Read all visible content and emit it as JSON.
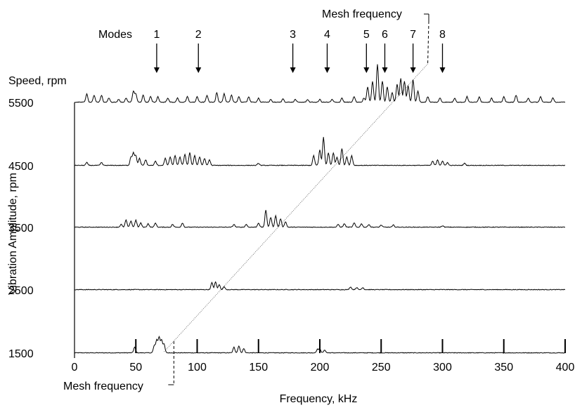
{
  "chart_data": {
    "type": "line",
    "title": "",
    "xlabel": "Frequency, kHz",
    "ylabel": "Vibration Amplitude, rpm",
    "speed_label": "Speed, rpm",
    "modes_label": "Modes",
    "mesh_label_top": "Mesh frequency",
    "mesh_label_bottom": "Mesh frequency",
    "xlim": [
      0,
      400
    ],
    "x_ticks": [
      "0",
      "50",
      "100",
      "150",
      "200",
      "250",
      "300",
      "350",
      "400"
    ],
    "x_tick_values": [
      0,
      50,
      100,
      150,
      200,
      250,
      300,
      350,
      400
    ],
    "y_ticks": [
      "1500",
      "2500",
      "3500",
      "4500",
      "5500"
    ],
    "y_tick_values": [
      1500,
      2500,
      3500,
      4500,
      5500
    ],
    "modes": [
      {
        "label": "1",
        "x": 67
      },
      {
        "label": "2",
        "x": 101
      },
      {
        "label": "3",
        "x": 178
      },
      {
        "label": "4",
        "x": 206
      },
      {
        "label": "5",
        "x": 238
      },
      {
        "label": "6",
        "x": 253
      },
      {
        "label": "7",
        "x": 276
      },
      {
        "label": "8",
        "x": 300
      }
    ],
    "mesh_line": {
      "x_start": 73,
      "x_end": 288
    },
    "series": [
      {
        "speed": 1500,
        "peaks": [
          [
            49,
            8
          ],
          [
            65,
            10
          ],
          [
            67,
            18
          ],
          [
            69,
            22
          ],
          [
            71,
            18
          ],
          [
            73,
            12
          ],
          [
            130,
            8
          ],
          [
            134,
            10
          ],
          [
            138,
            6
          ],
          [
            198,
            5
          ],
          [
            200,
            6
          ],
          [
            204,
            4
          ]
        ],
        "markers": [
          50,
          100,
          150,
          200,
          250,
          300,
          350,
          400
        ]
      },
      {
        "speed": 2500,
        "peaks": [
          [
            112,
            10
          ],
          [
            115,
            11
          ],
          [
            118,
            7
          ],
          [
            122,
            4
          ],
          [
            225,
            4
          ],
          [
            230,
            3
          ],
          [
            235,
            3
          ]
        ]
      },
      {
        "speed": 3500,
        "peaks": [
          [
            38,
            4
          ],
          [
            42,
            10
          ],
          [
            46,
            9
          ],
          [
            50,
            10
          ],
          [
            54,
            6
          ],
          [
            60,
            5
          ],
          [
            66,
            6
          ],
          [
            80,
            4
          ],
          [
            88,
            6
          ],
          [
            130,
            4
          ],
          [
            140,
            4
          ],
          [
            150,
            6
          ],
          [
            156,
            24
          ],
          [
            160,
            14
          ],
          [
            164,
            16
          ],
          [
            168,
            12
          ],
          [
            172,
            8
          ],
          [
            215,
            4
          ],
          [
            220,
            5
          ],
          [
            228,
            6
          ],
          [
            234,
            5
          ],
          [
            240,
            4
          ],
          [
            250,
            3
          ],
          [
            260,
            3
          ],
          [
            300,
            2
          ]
        ]
      },
      {
        "speed": 4500,
        "peaks": [
          [
            10,
            4
          ],
          [
            22,
            4
          ],
          [
            46,
            12
          ],
          [
            48,
            18
          ],
          [
            50,
            14
          ],
          [
            53,
            10
          ],
          [
            58,
            8
          ],
          [
            66,
            6
          ],
          [
            74,
            10
          ],
          [
            78,
            12
          ],
          [
            82,
            14
          ],
          [
            86,
            12
          ],
          [
            90,
            16
          ],
          [
            94,
            18
          ],
          [
            98,
            14
          ],
          [
            102,
            12
          ],
          [
            106,
            10
          ],
          [
            110,
            8
          ],
          [
            150,
            3
          ],
          [
            195,
            14
          ],
          [
            200,
            22
          ],
          [
            203,
            40
          ],
          [
            207,
            18
          ],
          [
            211,
            18
          ],
          [
            214,
            12
          ],
          [
            218,
            24
          ],
          [
            222,
            12
          ],
          [
            226,
            14
          ],
          [
            292,
            6
          ],
          [
            296,
            8
          ],
          [
            300,
            6
          ],
          [
            304,
            4
          ],
          [
            318,
            3
          ]
        ]
      },
      {
        "speed": 5500,
        "peaks": [
          [
            10,
            12
          ],
          [
            16,
            10
          ],
          [
            22,
            10
          ],
          [
            28,
            6
          ],
          [
            36,
            4
          ],
          [
            42,
            6
          ],
          [
            48,
            16
          ],
          [
            50,
            12
          ],
          [
            56,
            10
          ],
          [
            62,
            8
          ],
          [
            68,
            8
          ],
          [
            76,
            6
          ],
          [
            84,
            6
          ],
          [
            92,
            8
          ],
          [
            100,
            8
          ],
          [
            108,
            10
          ],
          [
            116,
            14
          ],
          [
            122,
            12
          ],
          [
            128,
            10
          ],
          [
            134,
            8
          ],
          [
            142,
            8
          ],
          [
            150,
            6
          ],
          [
            160,
            4
          ],
          [
            170,
            5
          ],
          [
            180,
            4
          ],
          [
            190,
            4
          ],
          [
            200,
            4
          ],
          [
            210,
            4
          ],
          [
            218,
            6
          ],
          [
            228,
            8
          ],
          [
            236,
            6
          ],
          [
            239,
            22
          ],
          [
            243,
            30
          ],
          [
            247,
            54
          ],
          [
            251,
            30
          ],
          [
            255,
            22
          ],
          [
            259,
            14
          ],
          [
            263,
            26
          ],
          [
            266,
            34
          ],
          [
            269,
            30
          ],
          [
            272,
            24
          ],
          [
            276,
            32
          ],
          [
            280,
            16
          ],
          [
            288,
            8
          ],
          [
            298,
            6
          ],
          [
            310,
            6
          ],
          [
            320,
            8
          ],
          [
            330,
            8
          ],
          [
            340,
            6
          ],
          [
            350,
            8
          ],
          [
            360,
            10
          ],
          [
            370,
            6
          ],
          [
            380,
            8
          ],
          [
            390,
            6
          ]
        ]
      }
    ]
  }
}
